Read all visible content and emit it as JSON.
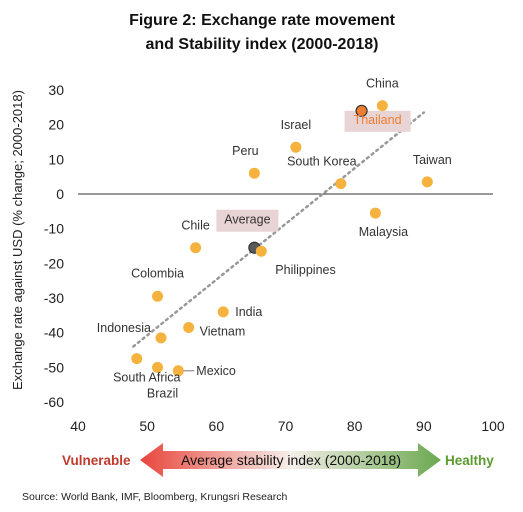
{
  "title_line1": "Figure 2: Exchange rate movement",
  "title_line2": "and Stability index (2000-2018)",
  "source": "Source: World Bank, IMF, Bloomberg, Krungsri Research",
  "arrow": {
    "left_label": "Vulnerable",
    "center_label": "Average stability index (2000-2018)",
    "right_label": "Healthy",
    "left_color": "#E8453C",
    "right_color": "#6AA84F"
  },
  "colors": {
    "point": "#F6B23E",
    "highlight_point": "#ED7D31",
    "average_point": "#5A5A5A",
    "trend": "#999999",
    "label_box": "#E8D4D4"
  },
  "chart_data": {
    "type": "scatter",
    "xlabel": "",
    "ylabel": "Exchange rate against USD (% change; 2000-2018)",
    "xlim": [
      40,
      100
    ],
    "ylim": [
      -60,
      30
    ],
    "xticks": [
      40,
      50,
      60,
      70,
      80,
      90,
      100
    ],
    "yticks": [
      30,
      20,
      10,
      0,
      -10,
      -20,
      -30,
      -40,
      -50,
      -60
    ],
    "grid": false,
    "zero_line": true,
    "points": [
      {
        "label": "China",
        "x": 84,
        "y": 25.5
      },
      {
        "label": "Thailand",
        "x": 81,
        "y": 24,
        "highlight": true
      },
      {
        "label": "Israel",
        "x": 71.5,
        "y": 13.5
      },
      {
        "label": "Peru",
        "x": 65.5,
        "y": 6
      },
      {
        "label": "South Korea",
        "x": 78,
        "y": 3
      },
      {
        "label": "Taiwan",
        "x": 90.5,
        "y": 3.5
      },
      {
        "label": "Malaysia",
        "x": 83,
        "y": -5.5
      },
      {
        "label": "Chile",
        "x": 57,
        "y": -15.5
      },
      {
        "label": "Average",
        "x": 65.5,
        "y": -15.5,
        "average": true
      },
      {
        "label": "Philippines",
        "x": 66.5,
        "y": -16.5
      },
      {
        "label": "Colombia",
        "x": 51.5,
        "y": -29.5
      },
      {
        "label": "India",
        "x": 61,
        "y": -34
      },
      {
        "label": "Vietnam",
        "x": 56,
        "y": -38.5
      },
      {
        "label": "Indonesia",
        "x": 52,
        "y": -41.5
      },
      {
        "label": "South Africa",
        "x": 48.5,
        "y": -47.5
      },
      {
        "label": "Brazil",
        "x": 51.5,
        "y": -50
      },
      {
        "label": "Mexico",
        "x": 54.5,
        "y": -51
      }
    ],
    "trendline": {
      "x": [
        48,
        90
      ],
      "y": [
        -44,
        23.5
      ]
    }
  }
}
